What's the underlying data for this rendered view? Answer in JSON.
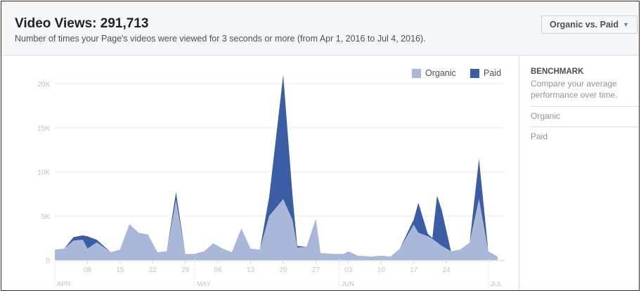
{
  "header": {
    "title": "Video Views: 291,713",
    "subtitle": "Number of times your Page's videos were viewed for 3 seconds or more (from Apr 1, 2016 to Jul 4, 2016).",
    "dropdown_label": "Organic vs. Paid"
  },
  "sidebar": {
    "title": "BENCHMARK",
    "description": "Compare your average performance over time.",
    "items": [
      "Organic",
      "Paid"
    ]
  },
  "colors": {
    "organic": "#a9b8d9",
    "paid": "#3a5da6",
    "grid": "#e9ebee",
    "axis_text": "#bec2c9"
  },
  "chart_data": {
    "type": "area",
    "stacked": true,
    "legend_position": "top-right",
    "grid": true,
    "ylim": [
      0,
      22000
    ],
    "y_ticks": [
      0,
      5000,
      10000,
      15000,
      20000
    ],
    "y_tick_labels": [
      "0",
      "5K",
      "10K",
      "15K",
      "20K"
    ],
    "x_ticks": [
      {
        "day": 7,
        "label": "08"
      },
      {
        "day": 14,
        "label": "15"
      },
      {
        "day": 21,
        "label": "22"
      },
      {
        "day": 28,
        "label": "29"
      },
      {
        "day": 35,
        "label": "06"
      },
      {
        "day": 42,
        "label": "13"
      },
      {
        "day": 49,
        "label": "20"
      },
      {
        "day": 56,
        "label": "27"
      },
      {
        "day": 63,
        "label": "03"
      },
      {
        "day": 70,
        "label": "10"
      },
      {
        "day": 77,
        "label": "17"
      },
      {
        "day": 84,
        "label": "24"
      }
    ],
    "month_labels": [
      {
        "day": 0,
        "label": "APR"
      },
      {
        "day": 30,
        "label": "MAY"
      },
      {
        "day": 61,
        "label": "JUN"
      },
      {
        "day": 93,
        "label": "JUL"
      }
    ],
    "series": [
      {
        "name": "Organic",
        "points": [
          [
            0,
            1200
          ],
          [
            2,
            1300
          ],
          [
            4,
            2200
          ],
          [
            6,
            2300
          ],
          [
            7,
            1300
          ],
          [
            9,
            2000
          ],
          [
            12,
            900
          ],
          [
            14,
            1200
          ],
          [
            16,
            4100
          ],
          [
            18,
            3100
          ],
          [
            20,
            2900
          ],
          [
            22,
            900
          ],
          [
            24,
            1000
          ],
          [
            26,
            6800
          ],
          [
            28,
            700
          ],
          [
            30,
            700
          ],
          [
            32,
            1000
          ],
          [
            34,
            1900
          ],
          [
            36,
            1300
          ],
          [
            38,
            900
          ],
          [
            40,
            3600
          ],
          [
            42,
            1300
          ],
          [
            44,
            1200
          ],
          [
            46,
            5000
          ],
          [
            49,
            6900
          ],
          [
            51,
            4500
          ],
          [
            52,
            1400
          ],
          [
            54,
            1500
          ],
          [
            56,
            4700
          ],
          [
            57,
            800
          ],
          [
            60,
            700
          ],
          [
            62,
            700
          ],
          [
            63,
            1000
          ],
          [
            65,
            500
          ],
          [
            68,
            400
          ],
          [
            70,
            500
          ],
          [
            72,
            400
          ],
          [
            74,
            1300
          ],
          [
            77,
            4000
          ],
          [
            78,
            3100
          ],
          [
            80,
            2700
          ],
          [
            81,
            2400
          ],
          [
            82,
            2000
          ],
          [
            83,
            1600
          ],
          [
            85,
            1000
          ],
          [
            87,
            1200
          ],
          [
            89,
            2000
          ],
          [
            91,
            6900
          ],
          [
            93,
            1000
          ],
          [
            95,
            400
          ]
        ]
      },
      {
        "name": "Paid",
        "points": [
          [
            0,
            0
          ],
          [
            2,
            0
          ],
          [
            4,
            400
          ],
          [
            6,
            500
          ],
          [
            7,
            1400
          ],
          [
            9,
            300
          ],
          [
            12,
            0
          ],
          [
            14,
            0
          ],
          [
            16,
            0
          ],
          [
            18,
            0
          ],
          [
            20,
            0
          ],
          [
            22,
            0
          ],
          [
            24,
            0
          ],
          [
            26,
            900
          ],
          [
            28,
            0
          ],
          [
            30,
            0
          ],
          [
            32,
            0
          ],
          [
            34,
            0
          ],
          [
            36,
            0
          ],
          [
            38,
            0
          ],
          [
            40,
            0
          ],
          [
            42,
            0
          ],
          [
            44,
            0
          ],
          [
            46,
            2200
          ],
          [
            49,
            14100
          ],
          [
            51,
            2800
          ],
          [
            52,
            200
          ],
          [
            54,
            0
          ],
          [
            56,
            0
          ],
          [
            57,
            0
          ],
          [
            60,
            0
          ],
          [
            62,
            0
          ],
          [
            63,
            0
          ],
          [
            65,
            0
          ],
          [
            68,
            0
          ],
          [
            70,
            0
          ],
          [
            72,
            0
          ],
          [
            74,
            0
          ],
          [
            77,
            600
          ],
          [
            78,
            3400
          ],
          [
            80,
            300
          ],
          [
            81,
            100
          ],
          [
            82,
            5300
          ],
          [
            83,
            4100
          ],
          [
            85,
            0
          ],
          [
            87,
            0
          ],
          [
            89,
            0
          ],
          [
            91,
            4600
          ],
          [
            93,
            0
          ],
          [
            95,
            0
          ]
        ]
      }
    ]
  }
}
